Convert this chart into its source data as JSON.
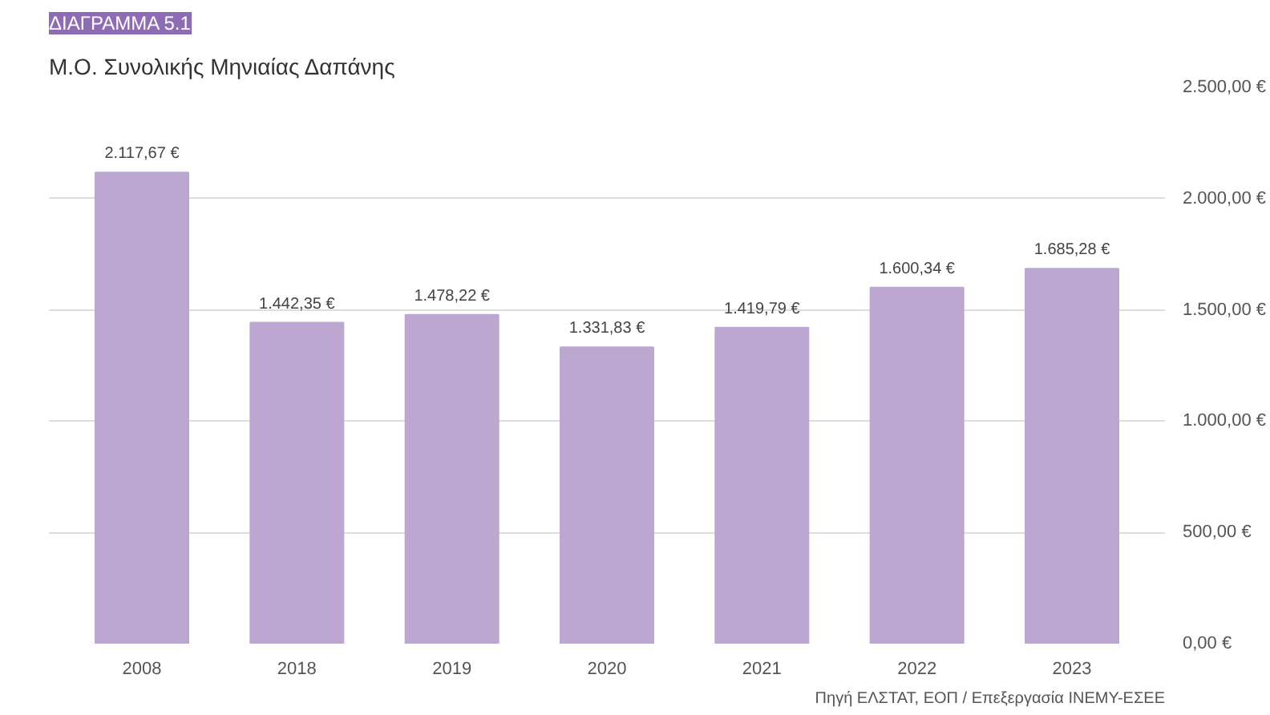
{
  "chart_data": {
    "type": "bar",
    "title": "ΔΙΑΓΡΑΜΜΑ 5.1",
    "subtitle": "Μ.Ο. Συνολικής Μηνιαίας Δαπάνης",
    "categories": [
      "2008",
      "2018",
      "2019",
      "2020",
      "2021",
      "2022",
      "2023"
    ],
    "values": [
      2117.67,
      1442.35,
      1478.22,
      1331.83,
      1419.79,
      1600.34,
      1685.28
    ],
    "value_labels": [
      "2.117,67 €",
      "1.442,35 €",
      "1.478,22 €",
      "1.331,83 €",
      "1.419,79 €",
      "1.600,34 €",
      "1.685,28 €"
    ],
    "color": "#bca7d0",
    "ylim": [
      0,
      2500
    ],
    "yticks": [
      {
        "value": 0,
        "label": "0,00 €"
      },
      {
        "value": 500,
        "label": "500,00 €"
      },
      {
        "value": 1000,
        "label": "1.000,00 €"
      },
      {
        "value": 1500,
        "label": "1.500,00 €"
      },
      {
        "value": 2000,
        "label": "2.000,00 €"
      },
      {
        "value": 2500,
        "label": "2.500,00 €"
      }
    ],
    "grid": "y",
    "annotations": [
      "Πηγή ΕΛΣΤΑΤ, ΕΟΠ / Επεξεργασία ΙΝΕΜΥ-ΕΣΕΕ"
    ]
  }
}
